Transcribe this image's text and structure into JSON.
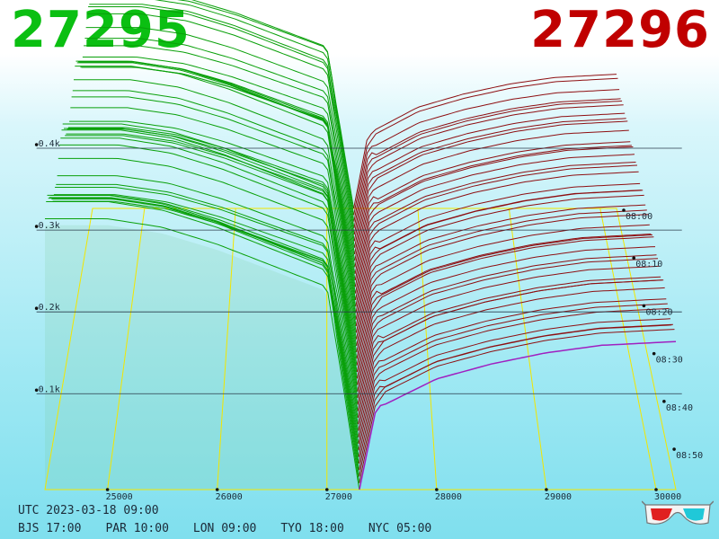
{
  "header": {
    "bid_price": "27295",
    "ask_price": "27296"
  },
  "footer": {
    "utc": "UTC 2023-03-18 09:00",
    "timezones": [
      {
        "label": "BJS 17:00"
      },
      {
        "label": "PAR 10:00"
      },
      {
        "label": "LON 09:00"
      },
      {
        "label": "TYO 18:00"
      },
      {
        "label": "NYC 05:00"
      }
    ]
  },
  "icons": {
    "glasses": "3d-glasses-icon"
  },
  "colors": {
    "bid": "#0bbf12",
    "ask": "#c00000",
    "bid_line": "#0aa00a",
    "ask_line": "#8e0f12",
    "grid": "#f2e600",
    "current_ask_line": "#a020c0"
  },
  "chart_data": {
    "type": "3d-depth",
    "x_ticks": [
      "25000",
      "26000",
      "27000",
      "28000",
      "29000",
      "30000"
    ],
    "x_range": [
      24430,
      30180
    ],
    "z_ticks": [
      "0.1k",
      "0.2k",
      "0.3k",
      "0.4k"
    ],
    "z_range": [
      0,
      400
    ],
    "time_ticks": [
      "08:00",
      "08:10",
      "08:20",
      "08:30",
      "08:40",
      "08:50"
    ],
    "time_range": [
      "08:00",
      "09:00"
    ],
    "bid_price": 27295,
    "ask_price": 27296,
    "bid_depth": [
      {
        "price": 24430,
        "volume": 320
      },
      {
        "price": 25000,
        "volume": 320
      },
      {
        "price": 25500,
        "volume": 310
      },
      {
        "price": 26000,
        "volume": 290
      },
      {
        "price": 26500,
        "volume": 265
      },
      {
        "price": 27000,
        "volume": 240
      },
      {
        "price": 27150,
        "volume": 120
      },
      {
        "price": 27295,
        "volume": 0
      }
    ],
    "ask_depth": [
      {
        "price": 27296,
        "volume": 0
      },
      {
        "price": 27450,
        "volume": 110
      },
      {
        "price": 28000,
        "volume": 150
      },
      {
        "price": 28500,
        "volume": 170
      },
      {
        "price": 29000,
        "volume": 185
      },
      {
        "price": 29500,
        "volume": 195
      },
      {
        "price": 30180,
        "volume": 200
      }
    ]
  }
}
